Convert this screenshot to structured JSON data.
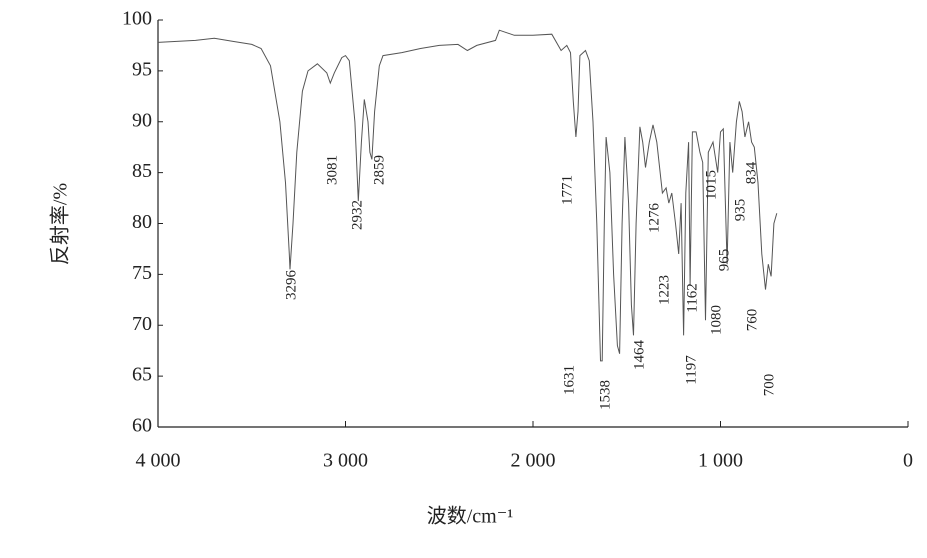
{
  "chart_data": {
    "type": "line",
    "xlabel": "波数/cm⁻¹",
    "ylabel": "反射率/%",
    "xlim": [
      4000,
      0
    ],
    "ylim": [
      60,
      100
    ],
    "xticks": [
      {
        "value": 4000,
        "label": "4 000"
      },
      {
        "value": 3000,
        "label": "3 000"
      },
      {
        "value": 2000,
        "label": "2 000"
      },
      {
        "value": 1000,
        "label": "1 000"
      },
      0
    ],
    "yticks": [
      60,
      65,
      70,
      75,
      80,
      85,
      90,
      95,
      100
    ],
    "x": [
      4000,
      3800,
      3700,
      3600,
      3500,
      3450,
      3400,
      3350,
      3320,
      3300,
      3296,
      3280,
      3260,
      3230,
      3200,
      3150,
      3100,
      3085,
      3081,
      3060,
      3020,
      3000,
      2980,
      2950,
      2932,
      2915,
      2900,
      2880,
      2870,
      2859,
      2845,
      2820,
      2800,
      2700,
      2600,
      2500,
      2400,
      2350,
      2300,
      2200,
      2180,
      2100,
      2000,
      1900,
      1850,
      1820,
      1800,
      1785,
      1771,
      1760,
      1750,
      1720,
      1700,
      1680,
      1660,
      1640,
      1631,
      1620,
      1610,
      1590,
      1570,
      1550,
      1538,
      1525,
      1510,
      1490,
      1475,
      1464,
      1450,
      1430,
      1415,
      1400,
      1380,
      1360,
      1340,
      1310,
      1290,
      1276,
      1260,
      1240,
      1223,
      1210,
      1197,
      1185,
      1170,
      1162,
      1150,
      1130,
      1110,
      1095,
      1080,
      1065,
      1040,
      1015,
      1000,
      985,
      965,
      950,
      935,
      915,
      900,
      885,
      870,
      850,
      834,
      820,
      800,
      780,
      760,
      745,
      730,
      715,
      700
    ],
    "series": [
      {
        "color": "#555555",
        "values": [
          97.8,
          98.0,
          98.2,
          97.9,
          97.6,
          97.2,
          95.5,
          90,
          84,
          77,
          75.5,
          80,
          87,
          93,
          95,
          95.7,
          94.8,
          94.0,
          93.8,
          94.8,
          96.3,
          96.5,
          96,
          90,
          82.2,
          88,
          92.2,
          90,
          87,
          86.3,
          91,
          95.5,
          96.5,
          96.8,
          97.2,
          97.5,
          97.6,
          97.0,
          97.5,
          98,
          99,
          98.5,
          98.5,
          98.6,
          97,
          97.5,
          96.8,
          92,
          88.5,
          91,
          96.5,
          97,
          96,
          90,
          80,
          66.5,
          66.5,
          80,
          88.5,
          85,
          75,
          68,
          67.2,
          80,
          88.5,
          82,
          72,
          69,
          80,
          89.5,
          88,
          85.5,
          88,
          89.7,
          88,
          83,
          83.5,
          82,
          83,
          80,
          77,
          82,
          69,
          83,
          88,
          74,
          89,
          89,
          87,
          86,
          70.5,
          87,
          88,
          85,
          89,
          89.3,
          76,
          88,
          85,
          90,
          92,
          91,
          88.5,
          90,
          88,
          87.5,
          84,
          77,
          73.5,
          76,
          74.8,
          80,
          81
        ]
      }
    ],
    "peaks": [
      3296,
      3081,
      2932,
      2859,
      1771,
      1631,
      1538,
      1464,
      1276,
      1223,
      1197,
      1162,
      1080,
      1015,
      965,
      935,
      834,
      760,
      700
    ]
  }
}
